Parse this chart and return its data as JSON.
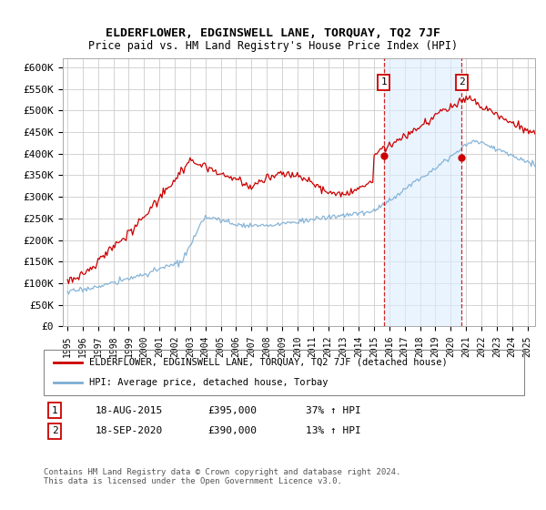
{
  "title": "ELDERFLOWER, EDGINSWELL LANE, TORQUAY, TQ2 7JF",
  "subtitle": "Price paid vs. HM Land Registry's House Price Index (HPI)",
  "ylabel_ticks": [
    "£0",
    "£50K",
    "£100K",
    "£150K",
    "£200K",
    "£250K",
    "£300K",
    "£350K",
    "£400K",
    "£450K",
    "£500K",
    "£550K",
    "£600K"
  ],
  "ytick_values": [
    0,
    50000,
    100000,
    150000,
    200000,
    250000,
    300000,
    350000,
    400000,
    450000,
    500000,
    550000,
    600000
  ],
  "ylim": [
    0,
    620000
  ],
  "xlim_start": 1994.7,
  "xlim_end": 2025.5,
  "hpi_color": "#7aadd4",
  "hpi_fill_color": "#ddeeff",
  "price_color": "#cc0000",
  "sale1_date": 2015.63,
  "sale1_price": 395000,
  "sale2_date": 2020.72,
  "sale2_price": 390000,
  "sale1_label": "18-AUG-2015",
  "sale1_amount": "£395,000",
  "sale1_hpi": "37% ↑ HPI",
  "sale2_label": "18-SEP-2020",
  "sale2_amount": "£390,000",
  "sale2_hpi": "13% ↑ HPI",
  "legend1": "ELDERFLOWER, EDGINSWELL LANE, TORQUAY, TQ2 7JF (detached house)",
  "legend2": "HPI: Average price, detached house, Torbay",
  "footnote": "Contains HM Land Registry data © Crown copyright and database right 2024.\nThis data is licensed under the Open Government Licence v3.0.",
  "background_color": "#ffffff",
  "grid_color": "#cccccc"
}
